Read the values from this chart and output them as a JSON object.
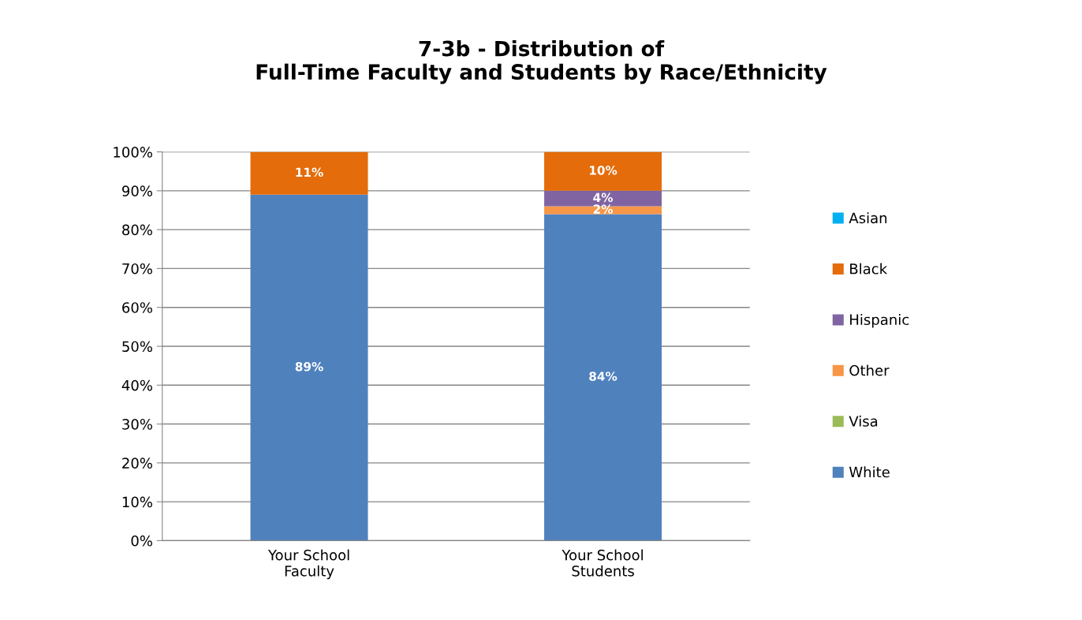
{
  "chart_data": {
    "type": "bar",
    "title": "7-3b - Distribution of\nFull-Time Faculty and Students by Race/Ethnicity",
    "categories": [
      "Your School\nFaculty",
      "Your School\nStudents"
    ],
    "stacked": true,
    "series": [
      {
        "name": "White",
        "color": "#4f81bd",
        "values": [
          89,
          84
        ],
        "value_labels": [
          "89%",
          "84%"
        ]
      },
      {
        "name": "Visa",
        "color": "#9bbb59",
        "values": [
          0,
          0
        ],
        "value_labels": [
          null,
          null
        ]
      },
      {
        "name": "Other",
        "color": "#f79646",
        "values": [
          0,
          2
        ],
        "value_labels": [
          null,
          "2%"
        ]
      },
      {
        "name": "Hispanic",
        "color": "#8064a2",
        "values": [
          0,
          4
        ],
        "value_labels": [
          null,
          "4%"
        ]
      },
      {
        "name": "Black",
        "color": "#e46c0a",
        "values": [
          11,
          10
        ],
        "value_labels": [
          "11%",
          "10%"
        ]
      },
      {
        "name": "Asian",
        "color": "#00b0f0",
        "values": [
          0,
          0
        ],
        "value_labels": [
          null,
          null
        ]
      }
    ],
    "ylim": [
      0,
      100
    ],
    "yticks": [
      {
        "value": 0,
        "label": "0%"
      },
      {
        "value": 10,
        "label": "10%"
      },
      {
        "value": 20,
        "label": "20%"
      },
      {
        "value": 30,
        "label": "30%"
      },
      {
        "value": 40,
        "label": "40%"
      },
      {
        "value": 50,
        "label": "50%"
      },
      {
        "value": 60,
        "label": "60%"
      },
      {
        "value": 70,
        "label": "70%"
      },
      {
        "value": 80,
        "label": "80%"
      },
      {
        "value": 90,
        "label": "90%"
      },
      {
        "value": 100,
        "label": "100%"
      }
    ],
    "grid": "y",
    "legend": "right"
  }
}
